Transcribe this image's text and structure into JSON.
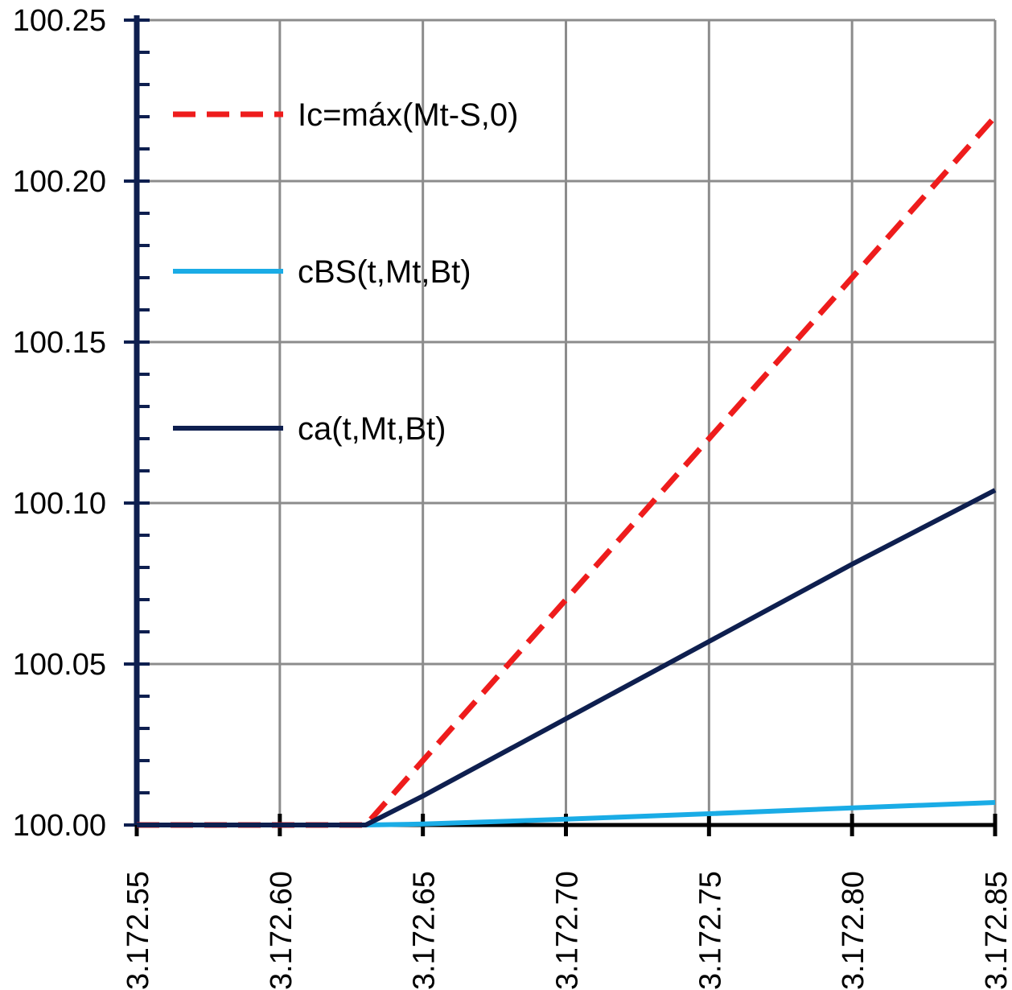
{
  "chart_data": {
    "type": "line",
    "title": "",
    "xlabel": "",
    "ylabel": "",
    "xlim": [
      3172.55,
      3172.85
    ],
    "ylim": [
      100.0,
      100.25
    ],
    "x_ticks": [
      3172.55,
      3172.6,
      3172.65,
      3172.7,
      3172.75,
      3172.8,
      3172.85
    ],
    "x_tick_labels": [
      "3.172.55",
      "3.172.60",
      "3.172.65",
      "3.172.70",
      "3.172.75",
      "3.172.80",
      "3.172.85"
    ],
    "y_ticks": [
      100.0,
      100.05,
      100.1,
      100.15,
      100.2,
      100.25
    ],
    "y_tick_labels": [
      "100.00",
      "100.05",
      "100.10",
      "100.15",
      "100.20",
      "100.25"
    ],
    "grid": true,
    "legend_position": "top-left",
    "series": [
      {
        "name": "Ic=máx(Mt-S,0)",
        "color": "#ee1c1c",
        "dash": true,
        "x": [
          3172.55,
          3172.63,
          3172.65,
          3172.7,
          3172.75,
          3172.8,
          3172.85
        ],
        "values": [
          100.0,
          100.0,
          100.02,
          100.07,
          100.12,
          100.17,
          100.22
        ]
      },
      {
        "name": "cBS(t,Mt,Bt)",
        "color": "#1aace6",
        "dash": false,
        "x": [
          3172.55,
          3172.6,
          3172.63,
          3172.65,
          3172.7,
          3172.75,
          3172.8,
          3172.85
        ],
        "values": [
          100.0,
          100.0,
          100.0,
          100.0003,
          100.0018,
          100.0035,
          100.0053,
          100.007
        ]
      },
      {
        "name": "ca(t,Mt,Bt)",
        "color": "#0e1f4f",
        "dash": false,
        "x": [
          3172.55,
          3172.6,
          3172.63,
          3172.65,
          3172.7,
          3172.75,
          3172.8,
          3172.85
        ],
        "values": [
          100.0,
          100.0,
          100.0,
          100.009,
          100.033,
          100.057,
          100.081,
          100.104
        ]
      }
    ]
  }
}
